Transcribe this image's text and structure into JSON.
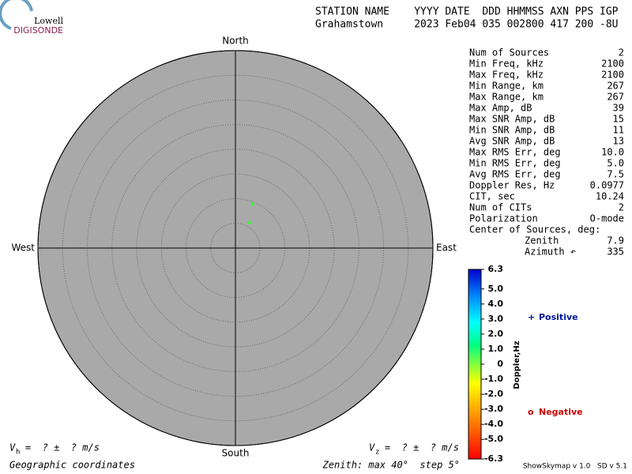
{
  "chart_data": {
    "type": "skymap",
    "logo": [
      "Lowell",
      "DIGISONDE"
    ],
    "header": [
      "STATION NAME    YYYY DATE  DDD HHMMSS AXN PPS IGP",
      "Grahamstown     2023 Feb04 035 002800 417 200 -8U"
    ],
    "directions": {
      "north": "North",
      "east": "East",
      "south": "South",
      "west": "West"
    },
    "rlim": [
      0,
      40
    ],
    "rticks": [
      5,
      10,
      15,
      20,
      25,
      30,
      35,
      40
    ],
    "sources": {
      "zenith": [
        9.6,
        5.9
      ],
      "azimuth": [
        21,
        29
      ],
      "doppler": [
        0,
        0
      ]
    },
    "stats": [
      [
        "Num of Sources",
        "2"
      ],
      [
        "Min Freq, kHz",
        "2100"
      ],
      [
        "Max Freq, kHz",
        "2100"
      ],
      [
        "Min Range, km",
        "267"
      ],
      [
        "Max Range, km",
        "267"
      ],
      [
        "Max Amp, dB",
        "39"
      ],
      [
        "Max SNR Amp, dB",
        "15"
      ],
      [
        "Min SNR Amp, dB",
        "11"
      ],
      [
        "Avg SNR Amp, dB",
        "13"
      ],
      [
        "Max RMS Err, deg",
        "10.0"
      ],
      [
        "Min RMS Err, deg",
        "5.0"
      ],
      [
        "Avg RMS Err, deg",
        "7.5"
      ],
      [
        "Doppler Res, Hz",
        "0.0977"
      ],
      [
        "CIT, sec",
        "10.24"
      ],
      [
        "Num of CITs",
        "2"
      ],
      [
        "Polarization",
        "O-mode"
      ],
      [
        "Center of Sources, deg:",
        null
      ],
      [
        "Zenith",
        "7.9"
      ],
      [
        "Azimuth ↶",
        "335"
      ]
    ],
    "clim": [
      -6.3,
      6.3
    ],
    "cticks": [
      6.3,
      {
        "value": 5,
        "label": "5.0"
      },
      {
        "value": 4,
        "label": "4.0"
      },
      {
        "value": 3,
        "label": "3.0"
      },
      {
        "value": 2,
        "label": "2.0"
      },
      {
        "value": 1,
        "label": "1.0"
      },
      0,
      {
        "value": -1,
        "label": "-1.0"
      },
      {
        "value": -2,
        "label": "-2.0"
      },
      {
        "value": -3,
        "label": "-3.0"
      },
      {
        "value": -4,
        "label": "-4.0"
      },
      {
        "value": -5,
        "label": "-5.0"
      },
      -6.3
    ],
    "clabel": "Doppler,Hz",
    "legend": [
      {
        "symbol": "+",
        "name": "Positive",
        "color": "#00189c"
      },
      {
        "symbol": "o",
        "name": "Negative",
        "color": "#d00000"
      }
    ],
    "vh": [
      "V",
      "h",
      "=  ? ±  ? m/s"
    ],
    "vz": [
      "V",
      "z",
      "=  ? ±  ? m/s"
    ],
    "footer": [
      "Geographic coordinates",
      "Zenith: max 40°  step 5°",
      "ShowSkymap v 1.0   SD v 5.1"
    ]
  }
}
